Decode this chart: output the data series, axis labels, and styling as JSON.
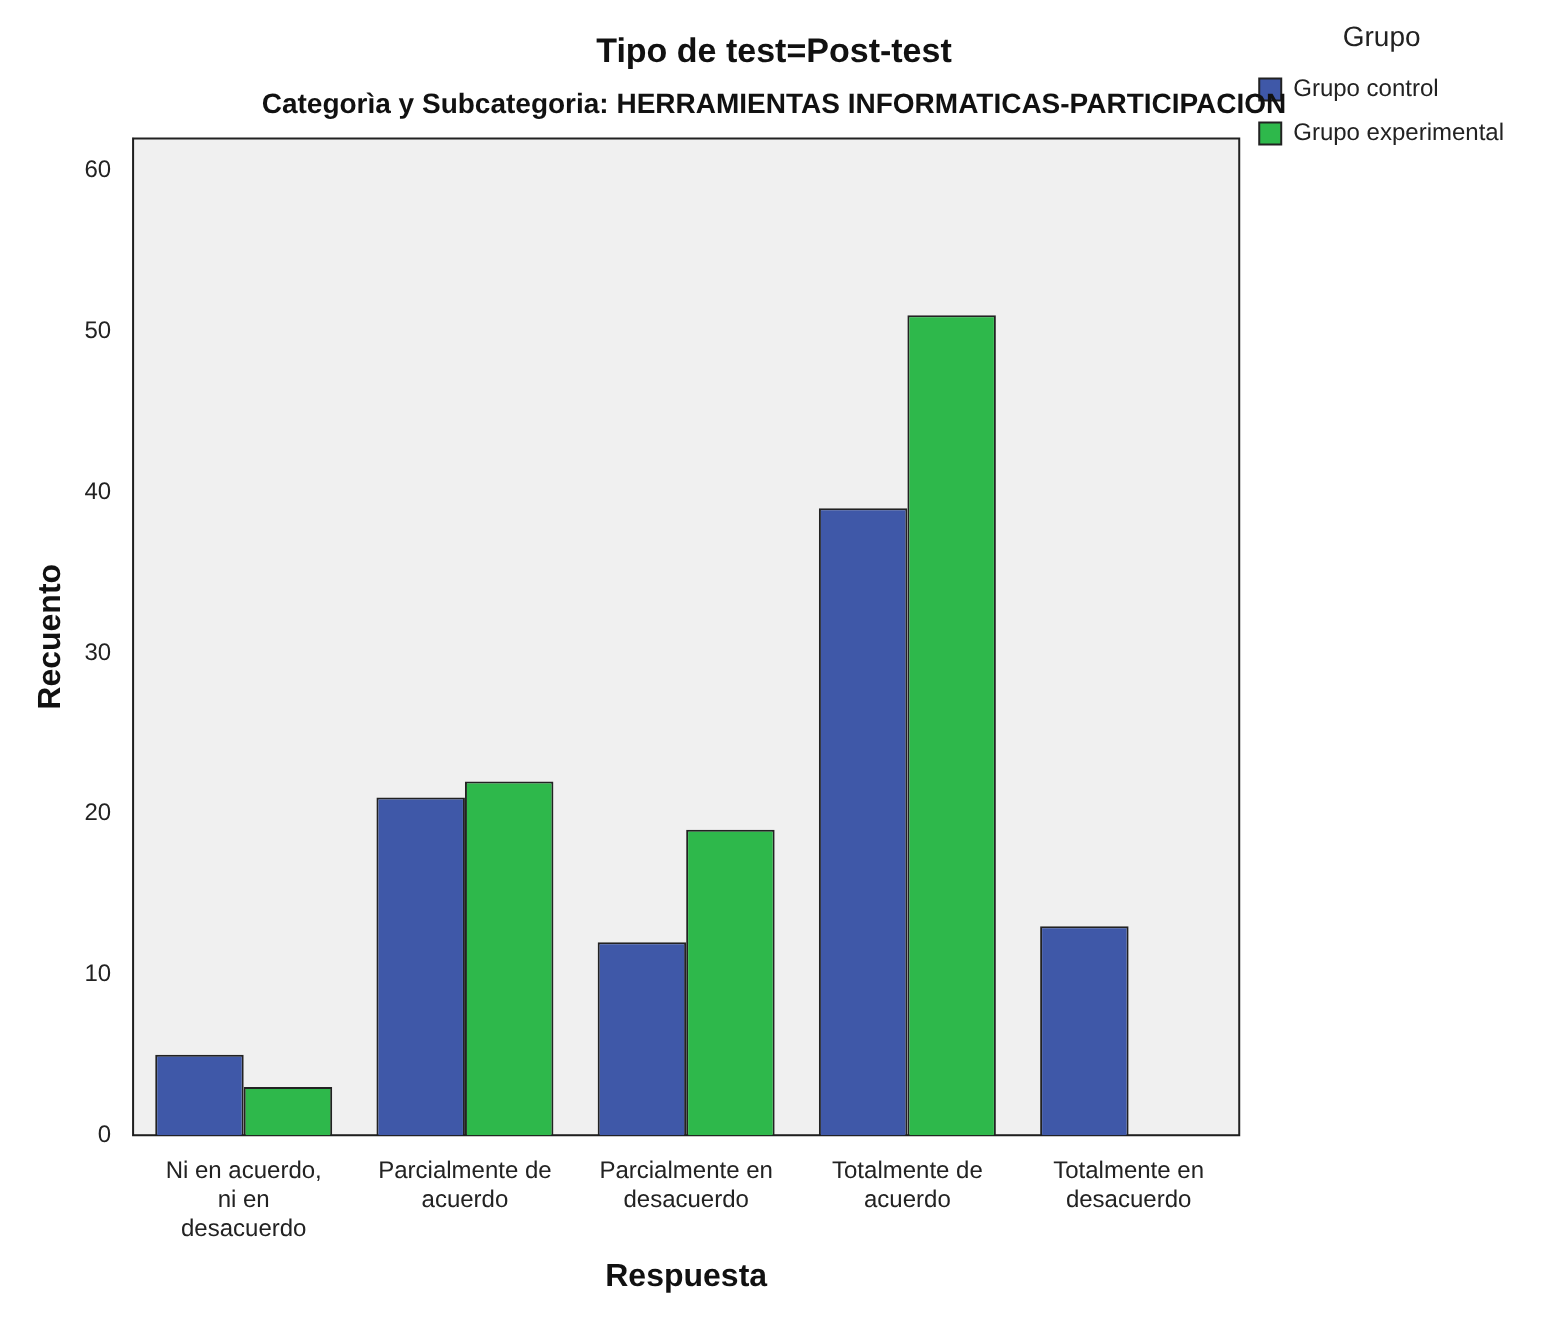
{
  "chart_data": {
    "type": "bar",
    "title": "Tipo de test=Post-test",
    "subtitle": "Categorìa y Subcategoria: HERRAMIENTAS INFORMATICAS-PARTICIPACION",
    "xlabel": "Respuesta",
    "ylabel": "Recuento",
    "legend_title": "Grupo",
    "categories": [
      "Ni en acuerdo, ni en desacuerdo",
      "Parcialmente de acuerdo",
      "Parcialmente en desacuerdo",
      "Totalmente de acuerdo",
      "Totalmente en desacuerdo"
    ],
    "series": [
      {
        "name": "Grupo control",
        "color": "#3f58a8",
        "values": [
          5,
          21,
          12,
          39,
          13
        ]
      },
      {
        "name": "Grupo experimental",
        "color": "#2eb84b",
        "values": [
          3,
          22,
          19,
          51,
          null
        ]
      }
    ],
    "ylim": [
      0,
      62
    ],
    "yticks": [
      0,
      10,
      20,
      30,
      40,
      50,
      60
    ],
    "grid": false,
    "legend": "top right"
  }
}
